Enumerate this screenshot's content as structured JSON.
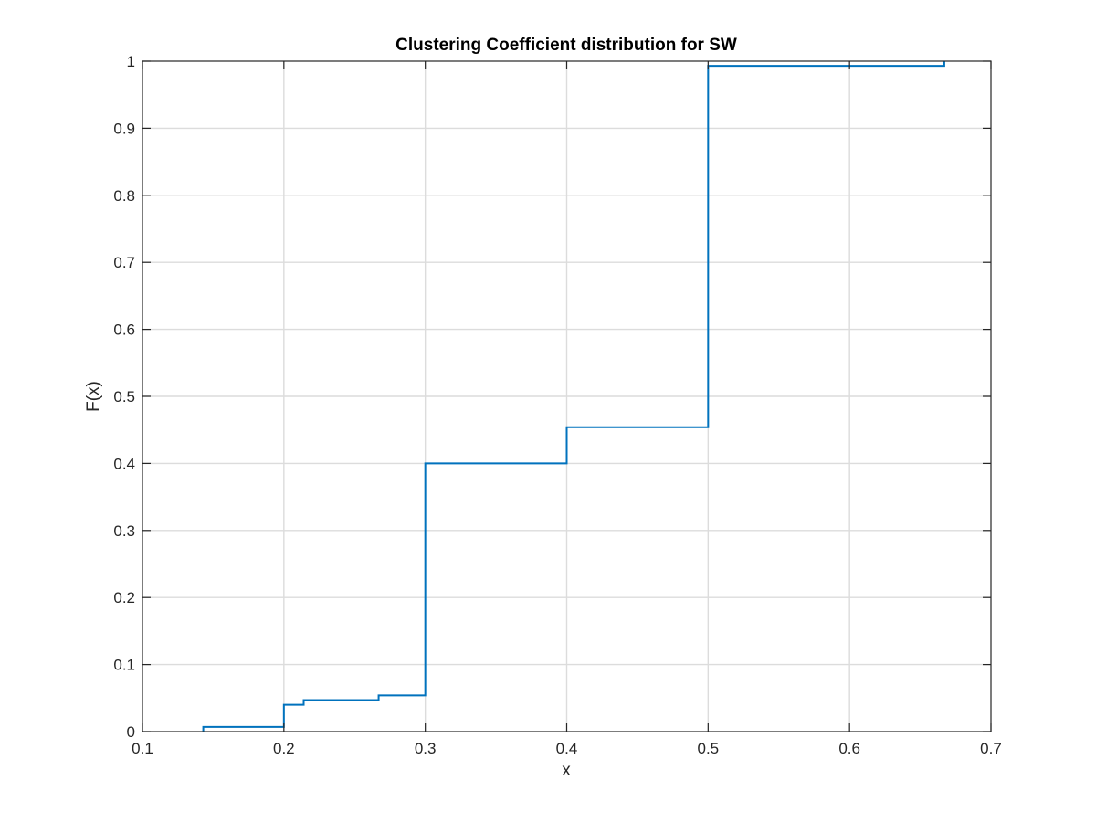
{
  "chart_data": {
    "type": "line",
    "style": "stairs",
    "title": "Clustering Coefficient distribution for SW",
    "xlabel": "x",
    "ylabel": "F(x)",
    "xlim": [
      0.1,
      0.7
    ],
    "ylim": [
      0,
      1
    ],
    "xticks": [
      0.1,
      0.2,
      0.3,
      0.4,
      0.5,
      0.6,
      0.7
    ],
    "xtick_labels": [
      "0.1",
      "0.2",
      "0.3",
      "0.4",
      "0.5",
      "0.6",
      "0.7"
    ],
    "yticks": [
      0,
      0.1,
      0.2,
      0.3,
      0.4,
      0.5,
      0.6,
      0.7,
      0.8,
      0.9,
      1
    ],
    "ytick_labels": [
      "0",
      "0.1",
      "0.2",
      "0.3",
      "0.4",
      "0.5",
      "0.6",
      "0.7",
      "0.8",
      "0.9",
      "1"
    ],
    "grid": true,
    "legend": "none",
    "series": [
      {
        "color": "#0072bd",
        "x": [
          0.143,
          0.2,
          0.214,
          0.267,
          0.3,
          0.4,
          0.5,
          0.667
        ],
        "y": [
          0.007,
          0.04,
          0.047,
          0.054,
          0.4,
          0.454,
          0.993,
          1.0
        ]
      }
    ]
  }
}
